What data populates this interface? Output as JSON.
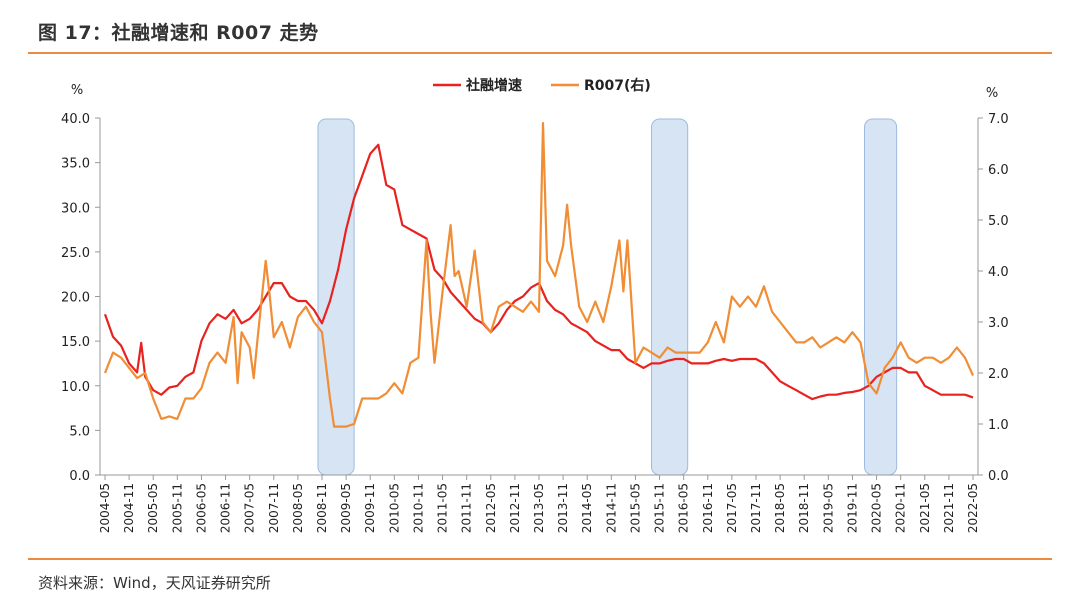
{
  "title": "图 17：社融增速和 R007 走势",
  "source": "资料来源：Wind，天风证券研究所",
  "chart_data": {
    "type": "line",
    "y_left_unit": "%",
    "y_right_unit": "%",
    "y_left_range": [
      0,
      40
    ],
    "y_left_ticks": [
      "0.0",
      "5.0",
      "10.0",
      "15.0",
      "20.0",
      "25.0",
      "30.0",
      "35.0",
      "40.0"
    ],
    "y_right_range": [
      0,
      7
    ],
    "y_right_ticks": [
      "0.0",
      "1.0",
      "2.0",
      "3.0",
      "4.0",
      "5.0",
      "6.0",
      "7.0"
    ],
    "x_range": [
      "2004-05",
      "2022-05"
    ],
    "x_ticks": [
      "2004-05",
      "2004-11",
      "2005-05",
      "2005-11",
      "2006-05",
      "2006-11",
      "2007-05",
      "2007-11",
      "2008-05",
      "2008-11",
      "2009-05",
      "2009-11",
      "2010-05",
      "2010-11",
      "2011-05",
      "2011-11",
      "2012-05",
      "2012-11",
      "2013-05",
      "2013-11",
      "2014-05",
      "2014-11",
      "2015-05",
      "2015-11",
      "2016-05",
      "2016-11",
      "2017-05",
      "2017-11",
      "2018-05",
      "2018-11",
      "2019-05",
      "2019-11",
      "2020-05",
      "2020-11",
      "2021-05",
      "2021-11",
      "2022-05"
    ],
    "legend": "top-center",
    "shaded_periods": [
      {
        "start": "2008-10",
        "end": "2009-07"
      },
      {
        "start": "2015-09",
        "end": "2016-06"
      },
      {
        "start": "2020-02",
        "end": "2020-10"
      }
    ],
    "series": [
      {
        "name": "社融增速",
        "axis": "left",
        "color": "#e8221f",
        "points": [
          [
            "2004-05",
            18.0
          ],
          [
            "2004-07",
            15.5
          ],
          [
            "2004-09",
            14.5
          ],
          [
            "2004-11",
            12.5
          ],
          [
            "2005-01",
            11.5
          ],
          [
            "2005-02",
            14.8
          ],
          [
            "2005-03",
            11.0
          ],
          [
            "2005-05",
            9.5
          ],
          [
            "2005-07",
            9.0
          ],
          [
            "2005-09",
            9.8
          ],
          [
            "2005-11",
            10.0
          ],
          [
            "2006-01",
            11.0
          ],
          [
            "2006-03",
            11.5
          ],
          [
            "2006-05",
            15.0
          ],
          [
            "2006-07",
            17.0
          ],
          [
            "2006-09",
            18.0
          ],
          [
            "2006-11",
            17.5
          ],
          [
            "2007-01",
            18.5
          ],
          [
            "2007-03",
            17.0
          ],
          [
            "2007-05",
            17.5
          ],
          [
            "2007-07",
            18.5
          ],
          [
            "2007-09",
            20.0
          ],
          [
            "2007-11",
            21.5
          ],
          [
            "2008-01",
            21.5
          ],
          [
            "2008-03",
            20.0
          ],
          [
            "2008-05",
            19.5
          ],
          [
            "2008-07",
            19.5
          ],
          [
            "2008-09",
            18.5
          ],
          [
            "2008-11",
            17.0
          ],
          [
            "2009-01",
            19.5
          ],
          [
            "2009-03",
            23.0
          ],
          [
            "2009-05",
            27.5
          ],
          [
            "2009-07",
            31.0
          ],
          [
            "2009-09",
            33.5
          ],
          [
            "2009-11",
            36.0
          ],
          [
            "2010-01",
            37.0
          ],
          [
            "2010-03",
            32.5
          ],
          [
            "2010-05",
            32.0
          ],
          [
            "2010-07",
            28.0
          ],
          [
            "2010-09",
            27.5
          ],
          [
            "2010-11",
            27.0
          ],
          [
            "2011-01",
            26.5
          ],
          [
            "2011-03",
            23.0
          ],
          [
            "2011-05",
            22.0
          ],
          [
            "2011-07",
            20.5
          ],
          [
            "2011-09",
            19.5
          ],
          [
            "2011-11",
            18.5
          ],
          [
            "2012-01",
            17.5
          ],
          [
            "2012-03",
            17.0
          ],
          [
            "2012-05",
            16.0
          ],
          [
            "2012-07",
            17.0
          ],
          [
            "2012-09",
            18.5
          ],
          [
            "2012-11",
            19.5
          ],
          [
            "2013-01",
            20.0
          ],
          [
            "2013-03",
            21.0
          ],
          [
            "2013-05",
            21.5
          ],
          [
            "2013-07",
            19.5
          ],
          [
            "2013-09",
            18.5
          ],
          [
            "2013-11",
            18.0
          ],
          [
            "2014-01",
            17.0
          ],
          [
            "2014-03",
            16.5
          ],
          [
            "2014-05",
            16.0
          ],
          [
            "2014-07",
            15.0
          ],
          [
            "2014-09",
            14.5
          ],
          [
            "2014-11",
            14.0
          ],
          [
            "2015-01",
            14.0
          ],
          [
            "2015-03",
            13.0
          ],
          [
            "2015-05",
            12.5
          ],
          [
            "2015-07",
            12.0
          ],
          [
            "2015-09",
            12.5
          ],
          [
            "2015-11",
            12.5
          ],
          [
            "2016-01",
            12.8
          ],
          [
            "2016-03",
            13.0
          ],
          [
            "2016-05",
            13.0
          ],
          [
            "2016-07",
            12.5
          ],
          [
            "2016-09",
            12.5
          ],
          [
            "2016-11",
            12.5
          ],
          [
            "2017-01",
            12.8
          ],
          [
            "2017-03",
            13.0
          ],
          [
            "2017-05",
            12.8
          ],
          [
            "2017-07",
            13.0
          ],
          [
            "2017-09",
            13.0
          ],
          [
            "2017-11",
            13.0
          ],
          [
            "2018-01",
            12.5
          ],
          [
            "2018-03",
            11.5
          ],
          [
            "2018-05",
            10.5
          ],
          [
            "2018-07",
            10.0
          ],
          [
            "2018-09",
            9.5
          ],
          [
            "2018-11",
            9.0
          ],
          [
            "2019-01",
            8.5
          ],
          [
            "2019-03",
            8.8
          ],
          [
            "2019-05",
            9.0
          ],
          [
            "2019-07",
            9.0
          ],
          [
            "2019-09",
            9.2
          ],
          [
            "2019-11",
            9.3
          ],
          [
            "2020-01",
            9.5
          ],
          [
            "2020-03",
            10.0
          ],
          [
            "2020-05",
            11.0
          ],
          [
            "2020-07",
            11.5
          ],
          [
            "2020-09",
            12.0
          ],
          [
            "2020-11",
            12.0
          ],
          [
            "2021-01",
            11.5
          ],
          [
            "2021-03",
            11.5
          ],
          [
            "2021-05",
            10.0
          ],
          [
            "2021-07",
            9.5
          ],
          [
            "2021-09",
            9.0
          ],
          [
            "2021-11",
            9.0
          ],
          [
            "2022-01",
            9.0
          ],
          [
            "2022-03",
            9.0
          ],
          [
            "2022-05",
            8.7
          ]
        ]
      },
      {
        "name": "R007(右)",
        "axis": "right",
        "color": "#f08d35",
        "points": [
          [
            "2004-05",
            2.0
          ],
          [
            "2004-07",
            2.4
          ],
          [
            "2004-09",
            2.3
          ],
          [
            "2004-11",
            2.1
          ],
          [
            "2005-01",
            1.9
          ],
          [
            "2005-03",
            2.0
          ],
          [
            "2005-05",
            1.5
          ],
          [
            "2005-07",
            1.1
          ],
          [
            "2005-09",
            1.15
          ],
          [
            "2005-11",
            1.1
          ],
          [
            "2006-01",
            1.5
          ],
          [
            "2006-03",
            1.5
          ],
          [
            "2006-05",
            1.7
          ],
          [
            "2006-07",
            2.2
          ],
          [
            "2006-09",
            2.4
          ],
          [
            "2006-11",
            2.2
          ],
          [
            "2007-01",
            3.1
          ],
          [
            "2007-02",
            1.8
          ],
          [
            "2007-03",
            2.8
          ],
          [
            "2007-05",
            2.5
          ],
          [
            "2007-06",
            1.9
          ],
          [
            "2007-07",
            2.7
          ],
          [
            "2007-09",
            4.2
          ],
          [
            "2007-10",
            3.5
          ],
          [
            "2007-11",
            2.7
          ],
          [
            "2008-01",
            3.0
          ],
          [
            "2008-03",
            2.5
          ],
          [
            "2008-05",
            3.1
          ],
          [
            "2008-07",
            3.3
          ],
          [
            "2008-09",
            3.0
          ],
          [
            "2008-11",
            2.8
          ],
          [
            "2009-01",
            1.5
          ],
          [
            "2009-02",
            0.95
          ],
          [
            "2009-03",
            0.95
          ],
          [
            "2009-05",
            0.95
          ],
          [
            "2009-07",
            1.0
          ],
          [
            "2009-09",
            1.5
          ],
          [
            "2009-11",
            1.5
          ],
          [
            "2010-01",
            1.5
          ],
          [
            "2010-03",
            1.6
          ],
          [
            "2010-05",
            1.8
          ],
          [
            "2010-07",
            1.6
          ],
          [
            "2010-09",
            2.2
          ],
          [
            "2010-11",
            2.3
          ],
          [
            "2011-01",
            4.6
          ],
          [
            "2011-02",
            3.2
          ],
          [
            "2011-03",
            2.2
          ],
          [
            "2011-05",
            3.6
          ],
          [
            "2011-07",
            4.9
          ],
          [
            "2011-08",
            3.9
          ],
          [
            "2011-09",
            4.0
          ],
          [
            "2011-11",
            3.3
          ],
          [
            "2012-01",
            4.4
          ],
          [
            "2012-03",
            3.0
          ],
          [
            "2012-05",
            2.8
          ],
          [
            "2012-07",
            3.3
          ],
          [
            "2012-09",
            3.4
          ],
          [
            "2012-11",
            3.3
          ],
          [
            "2013-01",
            3.2
          ],
          [
            "2013-03",
            3.4
          ],
          [
            "2013-05",
            3.2
          ],
          [
            "2013-06",
            6.9
          ],
          [
            "2013-07",
            4.2
          ],
          [
            "2013-09",
            3.9
          ],
          [
            "2013-11",
            4.5
          ],
          [
            "2013-12",
            5.3
          ],
          [
            "2014-01",
            4.5
          ],
          [
            "2014-03",
            3.3
          ],
          [
            "2014-05",
            3.0
          ],
          [
            "2014-07",
            3.4
          ],
          [
            "2014-09",
            3.0
          ],
          [
            "2014-11",
            3.7
          ],
          [
            "2015-01",
            4.6
          ],
          [
            "2015-02",
            3.6
          ],
          [
            "2015-03",
            4.6
          ],
          [
            "2015-05",
            2.2
          ],
          [
            "2015-07",
            2.5
          ],
          [
            "2015-09",
            2.4
          ],
          [
            "2015-11",
            2.3
          ],
          [
            "2016-01",
            2.5
          ],
          [
            "2016-03",
            2.4
          ],
          [
            "2016-05",
            2.4
          ],
          [
            "2016-07",
            2.4
          ],
          [
            "2016-09",
            2.4
          ],
          [
            "2016-11",
            2.6
          ],
          [
            "2017-01",
            3.0
          ],
          [
            "2017-03",
            2.6
          ],
          [
            "2017-05",
            3.5
          ],
          [
            "2017-07",
            3.3
          ],
          [
            "2017-09",
            3.5
          ],
          [
            "2017-11",
            3.3
          ],
          [
            "2018-01",
            3.7
          ],
          [
            "2018-03",
            3.2
          ],
          [
            "2018-05",
            3.0
          ],
          [
            "2018-07",
            2.8
          ],
          [
            "2018-09",
            2.6
          ],
          [
            "2018-11",
            2.6
          ],
          [
            "2019-01",
            2.7
          ],
          [
            "2019-03",
            2.5
          ],
          [
            "2019-05",
            2.6
          ],
          [
            "2019-07",
            2.7
          ],
          [
            "2019-09",
            2.6
          ],
          [
            "2019-11",
            2.8
          ],
          [
            "2020-01",
            2.6
          ],
          [
            "2020-03",
            1.8
          ],
          [
            "2020-05",
            1.6
          ],
          [
            "2020-07",
            2.1
          ],
          [
            "2020-09",
            2.3
          ],
          [
            "2020-11",
            2.6
          ],
          [
            "2021-01",
            2.3
          ],
          [
            "2021-03",
            2.2
          ],
          [
            "2021-05",
            2.3
          ],
          [
            "2021-07",
            2.3
          ],
          [
            "2021-09",
            2.2
          ],
          [
            "2021-11",
            2.3
          ],
          [
            "2022-01",
            2.5
          ],
          [
            "2022-03",
            2.3
          ],
          [
            "2022-05",
            1.95
          ]
        ]
      }
    ]
  }
}
